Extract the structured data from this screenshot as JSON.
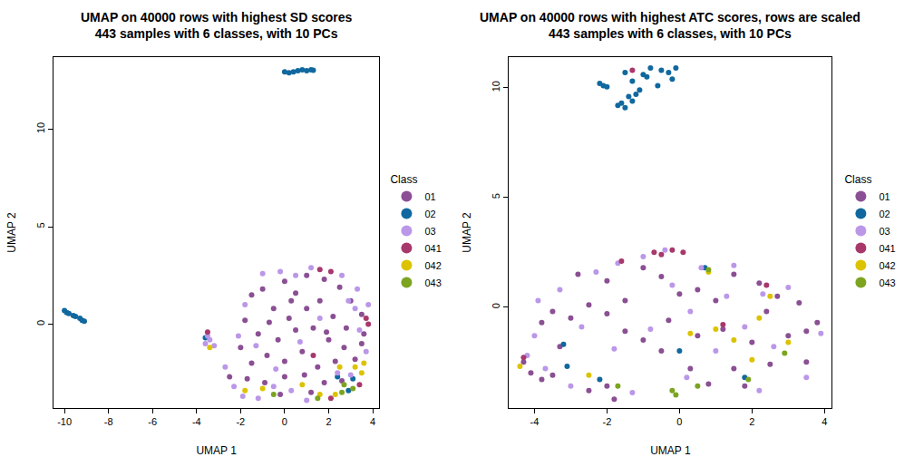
{
  "chart_data": [
    {
      "type": "scatter",
      "title": "UMAP on 40000 rows with highest SD scores\n443 samples with 6 classes, with 10 PCs",
      "x_label": "UMAP 1",
      "y_label": "UMAP 2",
      "legend_title": "Class",
      "legend": "right",
      "marker": "circle",
      "grid": false,
      "xlim": [
        -10.5,
        4.3
      ],
      "ylim": [
        -4.3,
        13.7
      ],
      "xticks": [
        -10,
        -8,
        -6,
        -4,
        -2,
        0,
        2,
        4
      ],
      "yticks": [
        0,
        5,
        10
      ],
      "series": [
        {
          "name": "01",
          "color": "#8B4F94",
          "x": [
            -1.5,
            -1,
            0,
            0.5,
            1,
            1.8,
            2.5,
            3,
            3.5,
            -0.5,
            0.2,
            1,
            1.6,
            2.2,
            2.8,
            3.6,
            -1.8,
            -1.2,
            -0.3,
            0.5,
            1.3,
            2,
            2.7,
            3.2,
            -2,
            -1.5,
            -0.8,
            0,
            0.8,
            1.5,
            2.3,
            -1.7,
            -0.9,
            0,
            0.9,
            1.8,
            2.6,
            3.5,
            -0.2,
            1.2,
            -2.5,
            0.3,
            1.9,
            -0.7
          ],
          "y": [
            1.5,
            1.8,
            2.2,
            1.6,
            2.5,
            2.3,
            1.9,
            1.2,
            0.5,
            0.8,
            0.3,
            0.8,
            1.2,
            0.4,
            -0.2,
            -0.5,
            0.2,
            -0.5,
            -0.8,
            -0.3,
            -0.2,
            -0.8,
            -1.2,
            -1.8,
            -1.2,
            -2,
            -1.6,
            -1.9,
            -1.4,
            -2.2,
            -1.9,
            -2.8,
            -3,
            -2.7,
            -2.6,
            -3,
            -2.9,
            -1,
            -3.6,
            -3.5,
            -2.7,
            1.2,
            -0.4,
            0.1
          ]
        },
        {
          "name": "02",
          "color": "#10689E",
          "x": [
            0,
            0.2,
            0.4,
            0.6,
            0.8,
            1,
            1.2,
            1.3,
            -10,
            -9.9,
            -9.8,
            -9.6,
            -9.5,
            -9.3,
            -9.2,
            -9.1,
            -3.6,
            2.9,
            2.4,
            3.1
          ],
          "y": [
            12.95,
            12.9,
            12.95,
            13,
            13.05,
            13,
            13.05,
            13.02,
            0.7,
            0.6,
            0.55,
            0.45,
            0.4,
            0.3,
            0.2,
            0.15,
            -0.7,
            -3.4,
            -2.7,
            -2.8
          ]
        },
        {
          "name": "03",
          "color": "#BB97E8",
          "x": [
            -3.6,
            -3.4,
            -3.5,
            -3.2,
            -2.7,
            -2.3,
            -1.9,
            -1.2,
            -0.5,
            0.3,
            1,
            -1,
            -0.2,
            0.5,
            1.2,
            2.6,
            3.3,
            3.8,
            3.4,
            3.7,
            3,
            -1.8,
            -1.3,
            0.7,
            1.6,
            2.4,
            -0.4,
            3.2,
            2.9,
            -2.1
          ],
          "y": [
            -1,
            -0.8,
            -0.6,
            -1.1,
            -2.2,
            -3.2,
            -3.7,
            -3.8,
            -3.2,
            -3.4,
            -3.9,
            2.6,
            2.7,
            2.5,
            2.9,
            2.5,
            1.8,
            1,
            -0.3,
            -1.4,
            -2.6,
            1,
            -1.1,
            -0.9,
            0.3,
            -2.5,
            -2.3,
            0.8,
            1.2,
            -0.6
          ]
        },
        {
          "name": "041",
          "color": "#A8386C",
          "x": [
            1.6,
            2.1,
            3.8,
            3.7,
            -3.5,
            2.1,
            3.4,
            1.3
          ],
          "y": [
            2.8,
            2.7,
            0,
            0.3,
            -0.4,
            -3.8,
            -3.1,
            -1.6
          ]
        },
        {
          "name": "042",
          "color": "#DCC300",
          "x": [
            3.2,
            3.6,
            3.5,
            2.3,
            -1.8,
            -1,
            0.8,
            2.5,
            -3.4,
            1.6
          ],
          "y": [
            -2.2,
            -2,
            -2.5,
            -3.6,
            -3.4,
            -3.3,
            -3.1,
            -2.2,
            -1.2,
            -3.6
          ]
        },
        {
          "name": "043",
          "color": "#7CA421",
          "x": [
            1.5,
            2.6,
            -0.5,
            3.1,
            2.7
          ],
          "y": [
            -3.8,
            -3.5,
            -3.6,
            -3.3,
            -3.1
          ]
        }
      ]
    },
    {
      "type": "scatter",
      "title": "UMAP on 40000 rows with highest ATC scores, rows are scaled\n443 samples with 6 classes, with 10 PCs",
      "x_label": "UMAP 1",
      "y_label": "UMAP 2",
      "legend_title": "Class",
      "legend": "right",
      "marker": "circle",
      "grid": false,
      "xlim": [
        -4.7,
        4.2
      ],
      "ylim": [
        -4.6,
        11.4
      ],
      "xticks": [
        -4,
        -2,
        0,
        2,
        4
      ],
      "yticks": [
        0,
        5,
        10
      ],
      "series": [
        {
          "name": "01",
          "color": "#8B4F94",
          "x": [
            -4.3,
            -4.1,
            -3.8,
            -3.5,
            -2.5,
            -1.8,
            -2,
            -3.8,
            -3.5,
            -3,
            -2.5,
            -2,
            -1.5,
            -1,
            -0.5,
            0.3,
            0.8,
            1.5,
            2,
            2.5,
            3,
            3.5,
            3.8,
            3.3,
            2.7,
            2.2,
            1.5,
            1,
            0.5,
            0,
            -0.5,
            -1,
            -2,
            -2.8,
            1.2,
            -0.3,
            2.4,
            -1.5,
            0.5,
            3.5,
            -3.3,
            1.8
          ],
          "y": [
            -2.5,
            -3,
            -3.3,
            -3.1,
            -3.8,
            -4.2,
            -3.6,
            -0.7,
            -0.2,
            -0.5,
            0.1,
            -0.3,
            -1.1,
            -1.5,
            -2,
            -2.8,
            -3.5,
            -2.8,
            -1.6,
            -2.6,
            -1.3,
            -1.1,
            -0.7,
            0.2,
            0.5,
            1.1,
            1.5,
            0.3,
            0.8,
            0.6,
            1.4,
            1.8,
            1.2,
            1.5,
            -1,
            -0.6,
            -0.2,
            0.3,
            -1.3,
            -2.5,
            -1.8,
            -3.6
          ]
        },
        {
          "name": "02",
          "color": "#10689E",
          "x": [
            -2.2,
            -2.1,
            -2,
            -1.5,
            -1.3,
            -1,
            -0.8,
            -0.5,
            -0.3,
            -0.2,
            -0.1,
            -1.6,
            -1.5,
            -1.3,
            -1.2,
            -1.1,
            -0.9,
            -1.7,
            -0.6,
            -1.4,
            -3.1,
            0,
            1.8,
            -2.2,
            0.7,
            -3.2
          ],
          "y": [
            10.2,
            10.1,
            10.05,
            10.7,
            10.3,
            10.6,
            10.9,
            10.8,
            10.7,
            10.4,
            10.9,
            9.3,
            9.1,
            9.4,
            9.7,
            9.9,
            10.5,
            9.2,
            10.1,
            9.6,
            -2.7,
            -2,
            -3.2,
            -3.3,
            1.8,
            -1.7
          ]
        },
        {
          "name": "03",
          "color": "#BB97E8",
          "x": [
            -4.2,
            -3.7,
            -3,
            -1.3,
            0.2,
            2.2,
            3.5,
            -3.9,
            -3.3,
            -2.3,
            -1.7,
            -1,
            -0.4,
            0.6,
            1.5,
            2.3,
            3,
            2.6,
            1,
            -0.8,
            -1.8,
            -2.7,
            0.3,
            1.8,
            -0.2,
            3.9,
            -4,
            1.3
          ],
          "y": [
            -2.2,
            -2.8,
            -3.6,
            -3.9,
            -3.2,
            -3.8,
            -3.2,
            0.3,
            0.8,
            1.6,
            2,
            2.3,
            2.6,
            1.8,
            1.9,
            0.6,
            0.9,
            -1.8,
            -2,
            -1,
            -1.9,
            -0.9,
            -0.2,
            -0.9,
            1,
            -1.2,
            -1.3,
            0.5
          ]
        },
        {
          "name": "041",
          "color": "#A8386C",
          "x": [
            -1.3,
            -0.2,
            -0.5,
            0.1,
            2.4,
            -4.3,
            1.2,
            -1.6,
            -0.7
          ],
          "y": [
            10.8,
            2.6,
            2.4,
            2.5,
            1,
            -2.3,
            -0.8,
            2.1,
            2.5
          ]
        },
        {
          "name": "042",
          "color": "#DCC300",
          "x": [
            1,
            0.3,
            2.2,
            2.5,
            3,
            0.8,
            -2.5,
            2,
            1.5,
            -4.4
          ],
          "y": [
            -1,
            -1.2,
            -0.5,
            0.5,
            -1.6,
            1.6,
            -3.1,
            -2.4,
            -1.5,
            -2.7
          ]
        },
        {
          "name": "043",
          "color": "#7CA421",
          "x": [
            -0.1,
            -0.2,
            0.5,
            1.9,
            -1.7,
            2.9,
            0.8
          ],
          "y": [
            -4,
            -3.8,
            -3.6,
            -3.3,
            -3.6,
            -2.1,
            1.7
          ]
        }
      ]
    }
  ]
}
